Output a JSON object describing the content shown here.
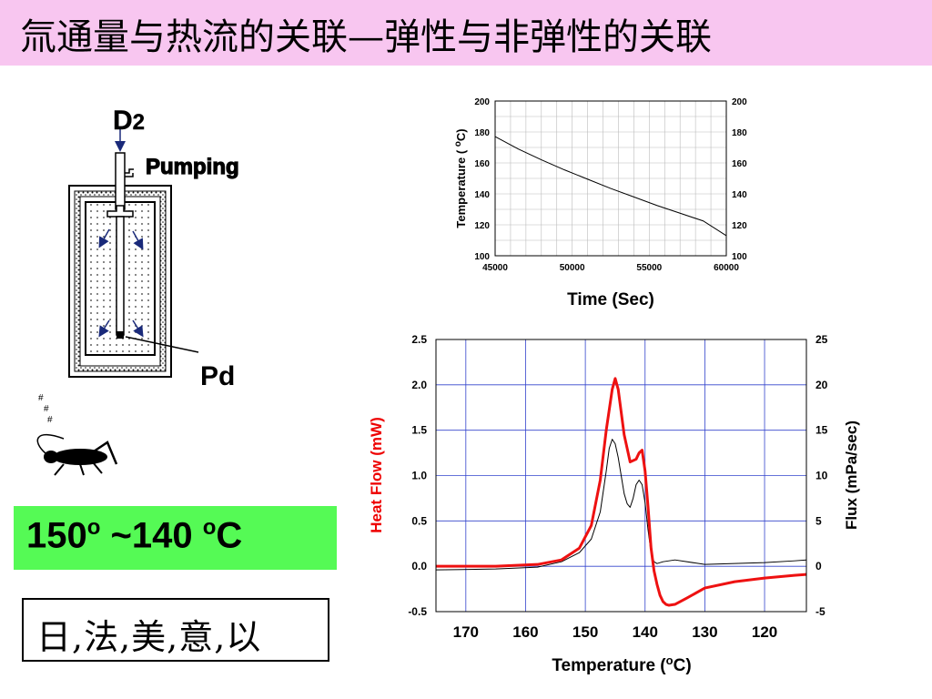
{
  "title": "氚通量与热流的关联—弹性与非弹性的关联",
  "apparatus": {
    "gas_label": "D",
    "gas_subscript": "2",
    "pumping_label": "Pumping",
    "sample_label": "Pd",
    "cricket_marks": "#"
  },
  "temperature_range": {
    "start": "150",
    "start_sup": "o",
    "separator": " ~140 ",
    "end_sup": "o",
    "unit": "C"
  },
  "countries": "日,法,美,意,以",
  "colors": {
    "title_bg": "#f8c6f0",
    "temp_box_bg": "#55fa55",
    "heat_flow": "#ee1111",
    "axis_red": "#ee0000",
    "grid_blue": "#3344cc"
  },
  "chart_data": [
    {
      "type": "line",
      "title": "",
      "xlabel": "Time (Sec)",
      "ylabel_main": "Temperature ( ",
      "ylabel_sup": "o",
      "ylabel_end": "C)",
      "xlim": [
        45000,
        60000
      ],
      "ylim": [
        100,
        200
      ],
      "x_ticks": [
        45000,
        50000,
        55000,
        60000
      ],
      "y_ticks": [
        100,
        120,
        140,
        160,
        180,
        200
      ],
      "grid": true,
      "series": [
        {
          "x": [
            45000,
            46500,
            48000,
            49500,
            51000,
            52500,
            54000,
            55500,
            57000,
            58500,
            60000
          ],
          "values": [
            177,
            169,
            162,
            155.5,
            149.5,
            143.5,
            138,
            132.5,
            127.5,
            122.5,
            113
          ]
        }
      ]
    },
    {
      "type": "line",
      "title": "",
      "xlabel_main": "Temperature (",
      "xlabel_sup": "o",
      "xlabel_end": "C)",
      "ylabel_left": "Heat Flow (mW)",
      "ylabel_right": "Flux (mPa/sec)",
      "xlim": [
        175,
        113
      ],
      "x_reversed": true,
      "ylim_left": [
        -0.5,
        2.5
      ],
      "ylim_right": [
        -5,
        25
      ],
      "x_ticks": [
        170,
        160,
        150,
        140,
        130,
        120
      ],
      "y_ticks_left": [
        "-0.5",
        "0.0",
        "0.5",
        "1.0",
        "1.5",
        "2.0",
        "2.5"
      ],
      "y_ticks_right": [
        "-5",
        "0",
        "5",
        "10",
        "15",
        "20",
        "25"
      ],
      "grid": true,
      "series": [
        {
          "axis": "left",
          "color": "red",
          "x": [
            175,
            165,
            158,
            154,
            151,
            149,
            147.5,
            146.5,
            145.5,
            145,
            144.5,
            143.5,
            142.5,
            141.5,
            141,
            140.5,
            140,
            139.5,
            139,
            138.5,
            138,
            137.5,
            137,
            136.5,
            136,
            135,
            133,
            130,
            125,
            120,
            115,
            113
          ],
          "values": [
            0,
            0,
            0.02,
            0.07,
            0.2,
            0.45,
            0.95,
            1.5,
            1.95,
            2.07,
            1.95,
            1.45,
            1.15,
            1.18,
            1.25,
            1.28,
            1.05,
            0.65,
            0.2,
            -0.05,
            -0.2,
            -0.32,
            -0.39,
            -0.42,
            -0.43,
            -0.42,
            -0.35,
            -0.24,
            -0.17,
            -0.13,
            -0.1,
            -0.09
          ]
        },
        {
          "axis": "right",
          "color": "black",
          "x": [
            175,
            165,
            158,
            154,
            151,
            149,
            147.5,
            146.5,
            146,
            145.5,
            145,
            144.5,
            144,
            143.5,
            143,
            142.5,
            142,
            141.5,
            141,
            140.5,
            140,
            139.5,
            139,
            138.5,
            138,
            137,
            135,
            130,
            125,
            120,
            115,
            113
          ],
          "values": [
            -0.4,
            -0.3,
            -0.1,
            0.5,
            1.5,
            3,
            6,
            10.5,
            13,
            14,
            13.5,
            12,
            10,
            8,
            6.9,
            6.5,
            7.5,
            9,
            9.5,
            9,
            7,
            4,
            1.5,
            0.5,
            0.3,
            0.5,
            0.7,
            0.2,
            0.3,
            0.4,
            0.6,
            0.7
          ]
        }
      ]
    }
  ]
}
